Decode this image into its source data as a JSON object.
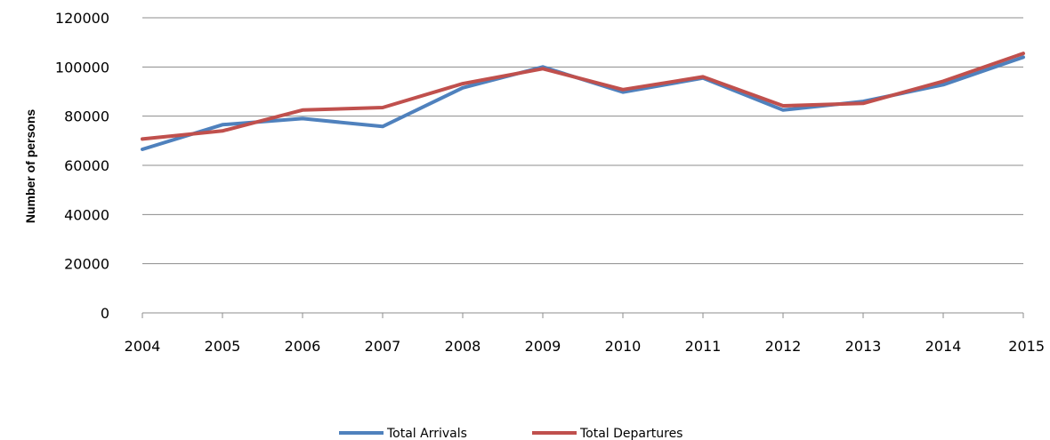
{
  "chart_data": {
    "type": "line",
    "title": "",
    "xlabel": "",
    "ylabel": "Number of persons",
    "x": [
      "2004",
      "2005",
      "2006",
      "2007",
      "2008",
      "2009",
      "2010",
      "2011",
      "2012",
      "2013",
      "2014",
      "2015"
    ],
    "ylim": [
      0,
      120000
    ],
    "yticks": [
      "0",
      "20000",
      "40000",
      "60000",
      "80000",
      "100000",
      "120000"
    ],
    "grid": true,
    "legend_position": "bottom",
    "series": [
      {
        "name": "Total Arrivals",
        "color": "#4F81BD",
        "values": [
          66500,
          76500,
          79000,
          75800,
          91500,
          100000,
          89800,
          95500,
          82500,
          86000,
          92800,
          104000
        ]
      },
      {
        "name": "Total Departures",
        "color": "#C0504D",
        "values": [
          70700,
          74000,
          82500,
          83500,
          93200,
          99300,
          90800,
          96000,
          84200,
          85200,
          94200,
          105500
        ]
      }
    ]
  }
}
